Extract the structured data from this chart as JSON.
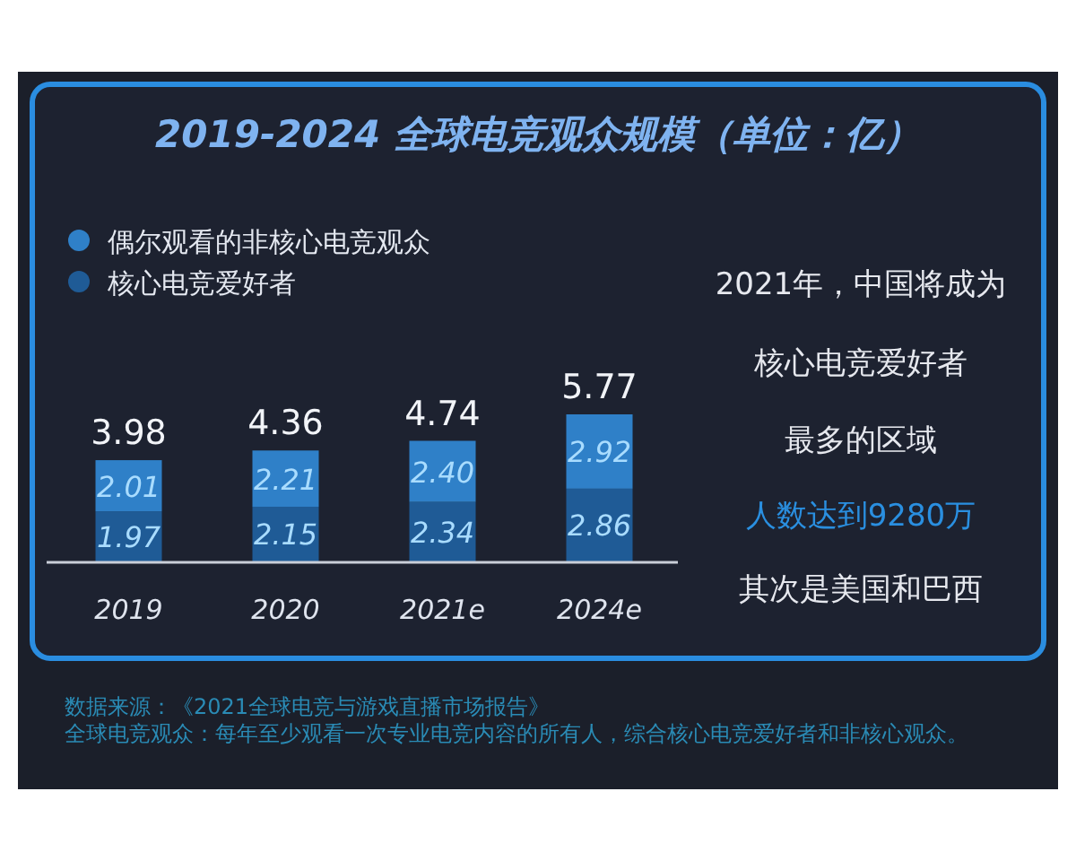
{
  "chart_data": {
    "type": "bar",
    "title": "2019-2024 全球电竞观众规模（单位：亿）",
    "categories": [
      "2019",
      "2020",
      "2021e",
      "2024e"
    ],
    "stacked": true,
    "series": [
      {
        "name": "核心电竞爱好者",
        "color": "#1f5b96",
        "values": [
          1.97,
          2.15,
          2.34,
          2.86
        ],
        "value_labels": [
          "1.97",
          "2.15",
          "2.34",
          "2.86"
        ]
      },
      {
        "name": "偶尔观看的非核心电竞观众",
        "color": "#2f80c8",
        "values": [
          2.01,
          2.21,
          2.4,
          2.92
        ],
        "value_labels": [
          "2.01",
          "2.21",
          "2.40",
          "2.92"
        ]
      }
    ],
    "totals": [
      "3.98",
      "4.36",
      "4.74",
      "5.77"
    ],
    "legend": "top left",
    "annotations": [
      "2021年，中国将成为",
      "核心电竞爱好者",
      "最多的区域",
      "人数达到9280万",
      "其次是美国和巴西",
      "数据来源：《2021全球电竞与游戏直播市场报告》",
      "全球电竞观众：每年至少观看一次专业电竞内容的所有人，综合核心电竞爱好者和非核心观众。"
    ]
  }
}
